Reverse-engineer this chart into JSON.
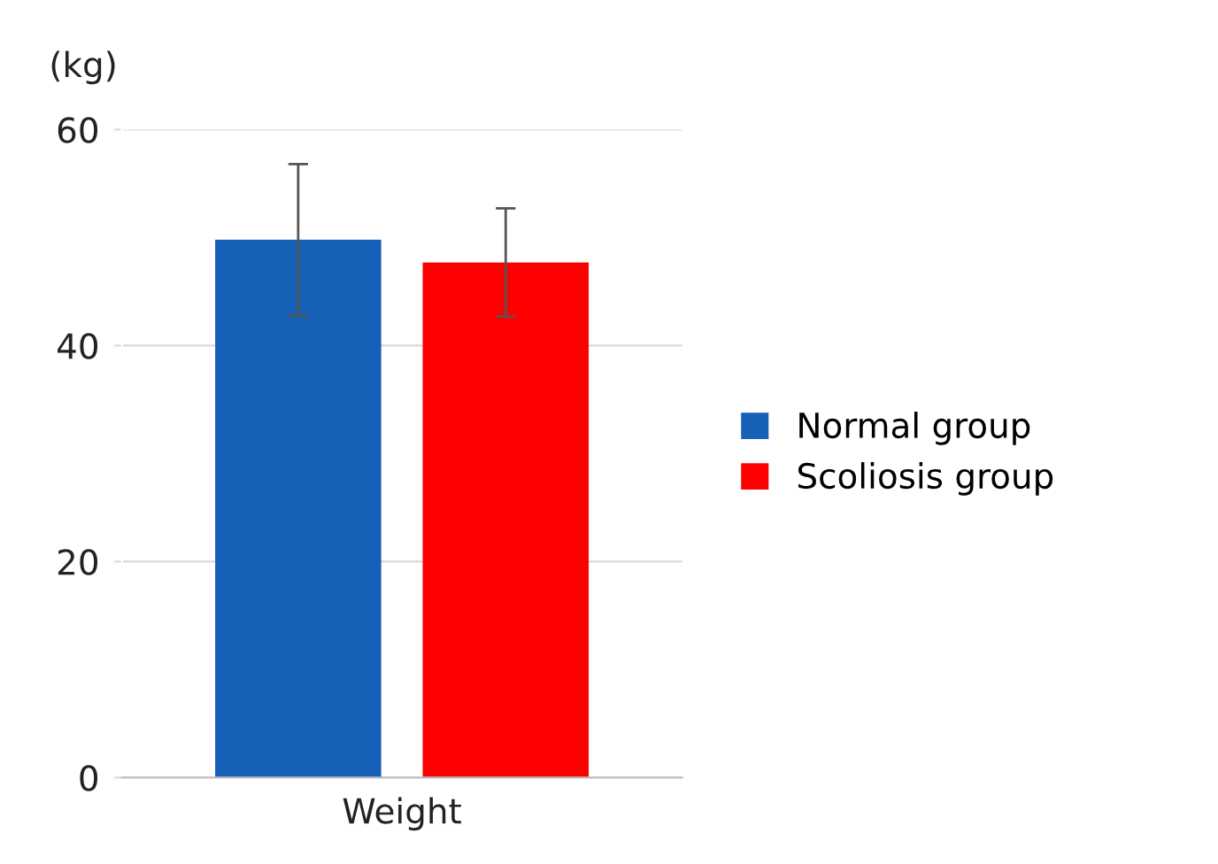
{
  "chart_data": {
    "type": "bar",
    "ylabel": "(kg)",
    "categories": [
      "Weight"
    ],
    "series": [
      {
        "name": "Normal group",
        "color": "#1660b8",
        "values": [
          49.8
        ],
        "errors": [
          7
        ]
      },
      {
        "name": "Scoliosis group",
        "color": "#ff0000",
        "values": [
          47.7
        ],
        "errors": [
          5
        ]
      }
    ],
    "ylim": [
      0,
      60
    ],
    "yticks": [
      0,
      20,
      40,
      60
    ],
    "grid": "y",
    "legend": "right"
  }
}
